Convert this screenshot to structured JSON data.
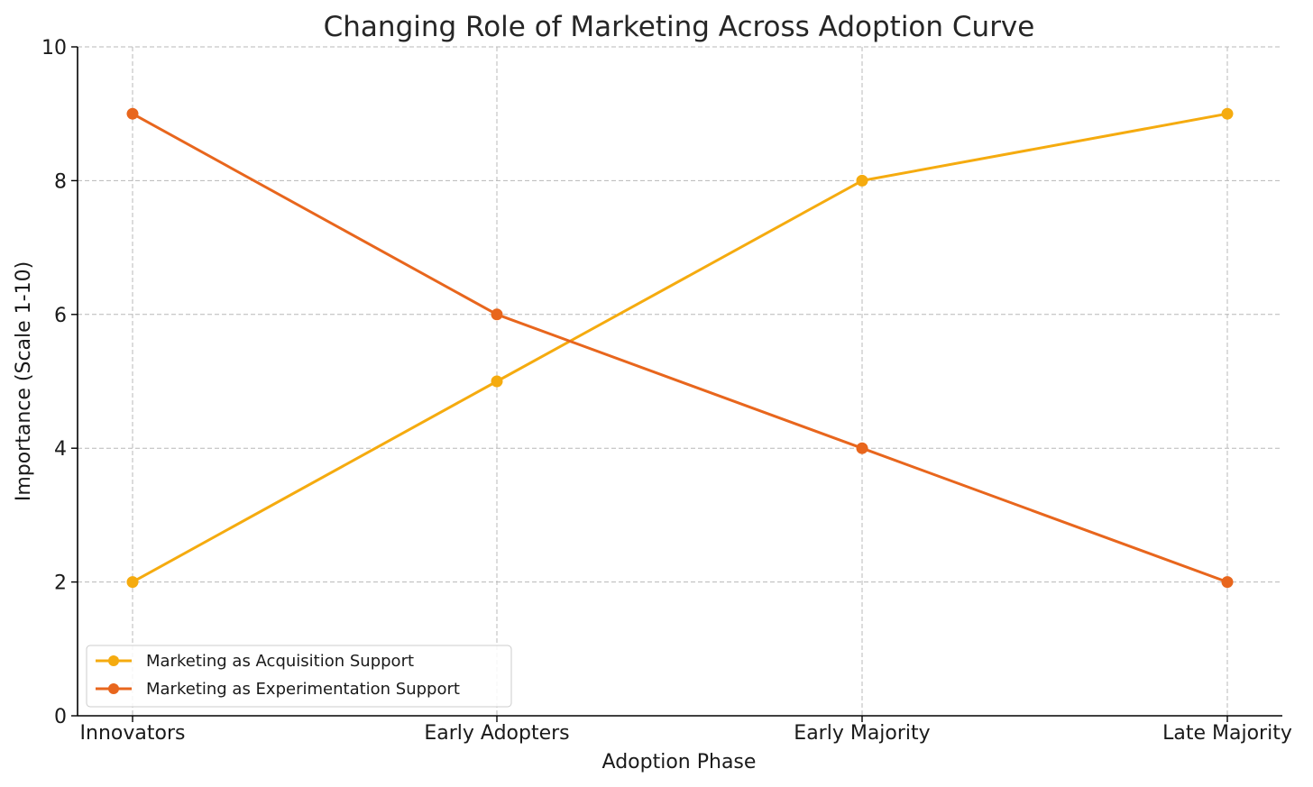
{
  "chart_data": {
    "type": "line",
    "title": "Changing Role of Marketing Across Adoption Curve",
    "xlabel": "Adoption Phase",
    "ylabel": "Importance (Scale 1-10)",
    "categories": [
      "Innovators",
      "Early Adopters",
      "Early Majority",
      "Late Majority"
    ],
    "ylim": [
      0,
      10
    ],
    "yticks": [
      0,
      2,
      4,
      6,
      8,
      10
    ],
    "grid": true,
    "legend_position": "lower-left",
    "series": [
      {
        "name": "Marketing as Acquisition Support",
        "values": [
          2,
          5,
          8,
          9
        ],
        "color": "#f5ab0f"
      },
      {
        "name": "Marketing as Experimentation Support",
        "values": [
          9,
          6,
          4,
          2
        ],
        "color": "#e8661d"
      }
    ]
  }
}
